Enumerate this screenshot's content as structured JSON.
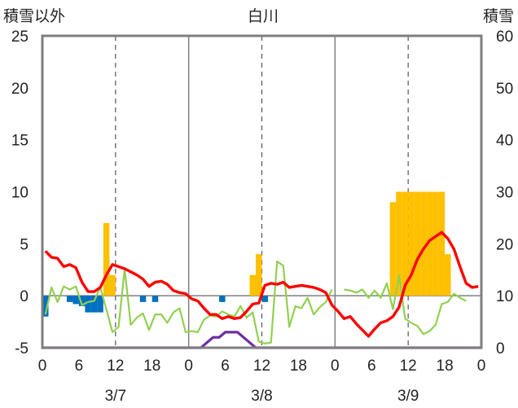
{
  "chart_data": {
    "type": "combo",
    "title": "白川",
    "left_axis": {
      "label": "積雪以外",
      "ylim": [
        -5,
        25
      ],
      "ticks": [
        "25",
        "20",
        "15",
        "10",
        "5",
        "0",
        "-5"
      ]
    },
    "right_axis": {
      "label": "積雪",
      "ylim": [
        0,
        60
      ],
      "ticks": [
        "60",
        "50",
        "40",
        "30",
        "20",
        "10",
        "0"
      ]
    },
    "x_axis": {
      "range_hours": [
        0,
        72
      ],
      "tick_labels": [
        "0",
        "6",
        "12",
        "18",
        "0",
        "6",
        "12",
        "18",
        "0",
        "6",
        "12",
        "18",
        "0"
      ],
      "date_labels": [
        {
          "text": "3/7",
          "hour": 12
        },
        {
          "text": "3/8",
          "hour": 36
        },
        {
          "text": "3/9",
          "hour": 60
        }
      ]
    },
    "colors": {
      "temperature": "#ff0000",
      "sunshine": "#92d050",
      "precipitation": "#ffc000",
      "snow_depth": "#7030a0",
      "negative_bars": "#0070c0",
      "frame": "#7f7f7f"
    },
    "series": [
      {
        "name": "precipitation",
        "type": "bar",
        "axis": "left",
        "hours": [
          10,
          11,
          34,
          35,
          57,
          58,
          59,
          60,
          61,
          62,
          63,
          64,
          65,
          66
        ],
        "values": [
          7,
          2,
          2,
          4,
          9,
          10,
          10,
          10,
          10,
          10,
          10,
          10,
          10,
          4
        ]
      },
      {
        "name": "negative_bars",
        "type": "bar",
        "axis": "left",
        "hours": [
          0,
          4,
          5,
          6,
          7,
          8,
          9,
          16,
          18,
          29,
          36
        ],
        "values": [
          -2,
          -0.6,
          -0.8,
          -1,
          -1.6,
          -1.6,
          -1.6,
          -0.6,
          -0.6,
          -0.6,
          -0.6
        ]
      },
      {
        "name": "temperature",
        "type": "line",
        "axis": "left",
        "hours": [
          0,
          1,
          2,
          3,
          4,
          5,
          6,
          7,
          8,
          9,
          10,
          11,
          12,
          13,
          14,
          15,
          16,
          17,
          18,
          19,
          20,
          21,
          22,
          23,
          24,
          25,
          26,
          27,
          28,
          29,
          30,
          31,
          32,
          33,
          34,
          35,
          36,
          37,
          38,
          39,
          40,
          41,
          42,
          43,
          44,
          45,
          46,
          47,
          48,
          49,
          50,
          51,
          52,
          53,
          54,
          55,
          56,
          57,
          58,
          59,
          60,
          61,
          62,
          63,
          64,
          65,
          66,
          67,
          68,
          69,
          70,
          71
        ],
        "values": [
          4.3,
          3.7,
          3.6,
          2.8,
          3.0,
          2.7,
          1.3,
          0.4,
          0.4,
          0.8,
          2.0,
          3.0,
          2.8,
          2.6,
          2.3,
          2.0,
          1.6,
          0.9,
          1.3,
          1.4,
          1.1,
          0.5,
          0.3,
          0.2,
          -0.3,
          -0.5,
          -1.2,
          -1.8,
          -1.8,
          -2.2,
          -2.0,
          -2.2,
          -2.1,
          -1.5,
          -0.8,
          -0.7,
          1.0,
          1.2,
          1.1,
          1.3,
          0.8,
          0.9,
          1.0,
          0.9,
          0.8,
          0.6,
          0.3,
          -0.9,
          -1.5,
          -2.2,
          -2.0,
          -2.7,
          -3.3,
          -3.9,
          -3.2,
          -2.6,
          -2.4,
          -2.0,
          -1.1,
          1.0,
          2.0,
          3.5,
          4.5,
          5.3,
          5.7,
          6.1,
          5.5,
          4.5,
          2.8,
          1.2,
          0.8,
          0.9
        ]
      },
      {
        "name": "sunshine",
        "type": "line",
        "axis": "left",
        "hours": [
          0,
          1,
          2,
          3,
          4,
          5,
          6,
          7,
          8,
          9,
          10,
          11,
          12,
          13,
          14,
          15,
          16,
          17,
          18,
          19,
          20,
          21,
          22,
          23,
          24,
          25,
          26,
          27,
          28,
          29,
          30,
          31,
          32,
          33,
          34,
          35,
          36,
          37,
          38,
          39,
          40,
          41,
          42,
          43,
          44,
          45,
          46,
          47,
          48,
          49,
          50,
          51,
          52,
          53,
          54,
          55,
          56,
          57,
          58,
          59,
          60,
          61,
          62,
          63,
          64,
          65,
          66,
          67,
          68,
          69,
          70,
          71
        ],
        "values": [
          -1.8,
          0.8,
          -0.6,
          0.9,
          0.6,
          0.9,
          -0.9,
          -0.6,
          -0.5,
          0.8,
          -1.3,
          -3.5,
          -3.0,
          2.6,
          -2.8,
          -2.1,
          -1.7,
          -3.3,
          -1.8,
          -1.8,
          -2.6,
          -1.6,
          -1.2,
          -3.5,
          -3.4,
          -3.5,
          -2.3,
          -1.9,
          -2.0,
          -1.5,
          -1.8,
          -2.0,
          -1.0,
          -2.1,
          -1.6,
          -4.4,
          -4.6,
          -4.5,
          3.3,
          2.9,
          -3.0,
          -1.0,
          -1.2,
          -0.2,
          -1.8,
          -1.1,
          -0.6,
          0.6,
          null,
          0.6,
          0.5,
          0.3,
          0.6,
          -0.2,
          0.5,
          -0.2,
          1.2,
          -1.3,
          2.0,
          -2.2,
          -2.6,
          -2.9,
          -3.7,
          -3.4,
          -2.8,
          -0.8,
          -0.6,
          0.2,
          -0.2,
          -0.5,
          null,
          null
        ],
        "break_hours": [
          48
        ]
      },
      {
        "name": "snow_depth",
        "type": "line",
        "axis": "right",
        "hours": [
          0,
          24,
          25,
          26,
          27,
          28,
          29,
          30,
          31,
          32,
          33,
          34,
          35,
          36,
          72
        ],
        "values": [
          0,
          0,
          0,
          0,
          1,
          2,
          2,
          3,
          3,
          3,
          2,
          1,
          0,
          0,
          0
        ]
      }
    ]
  }
}
